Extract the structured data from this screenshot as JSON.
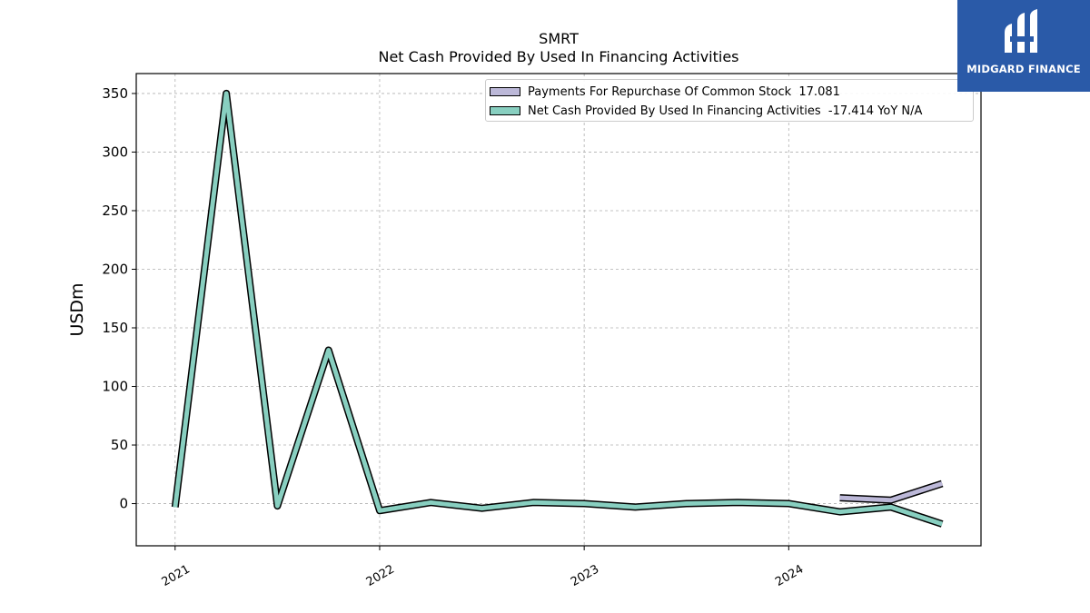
{
  "chart_data": {
    "type": "line",
    "title": "SMRT",
    "subtitle": "Net Cash Provided By Used In Financing Activities",
    "ylabel": "USDm",
    "xlabel": "",
    "xlim": [
      2020.81,
      2024.94
    ],
    "ylim": [
      -36,
      367
    ],
    "yticks": [
      0,
      50,
      100,
      150,
      200,
      250,
      300,
      350
    ],
    "xticks": [
      {
        "value": 2021.0,
        "label": "2021"
      },
      {
        "value": 2022.0,
        "label": "2022"
      },
      {
        "value": 2023.0,
        "label": "2023"
      },
      {
        "value": 2024.0,
        "label": "2024"
      }
    ],
    "grid": true,
    "legend_position": "top-right",
    "series": [
      {
        "name": "Payments For Repurchase Of Common Stock",
        "legend_value": "17.081",
        "color": "#bcb8d8",
        "x": [
          2024.25,
          2024.5,
          2024.75
        ],
        "y": [
          5,
          3,
          17.081
        ]
      },
      {
        "name": "Net Cash Provided By Used In Financing Activities",
        "legend_value": "-17.414 YoY N/A",
        "color": "#88cfc0",
        "x": [
          2021.0,
          2021.25,
          2021.5,
          2021.75,
          2022.0,
          2022.25,
          2022.5,
          2022.75,
          2023.0,
          2023.25,
          2023.5,
          2023.75,
          2024.0,
          2024.25,
          2024.5,
          2024.75
        ],
        "y": [
          -3,
          350,
          -2,
          131,
          -6,
          1,
          -4,
          1,
          0,
          -3,
          0,
          1,
          0,
          -7,
          -3,
          -17.414
        ]
      }
    ]
  },
  "logo": {
    "text": "MIDGARD FINANCE",
    "color": "#2a5aa8"
  }
}
